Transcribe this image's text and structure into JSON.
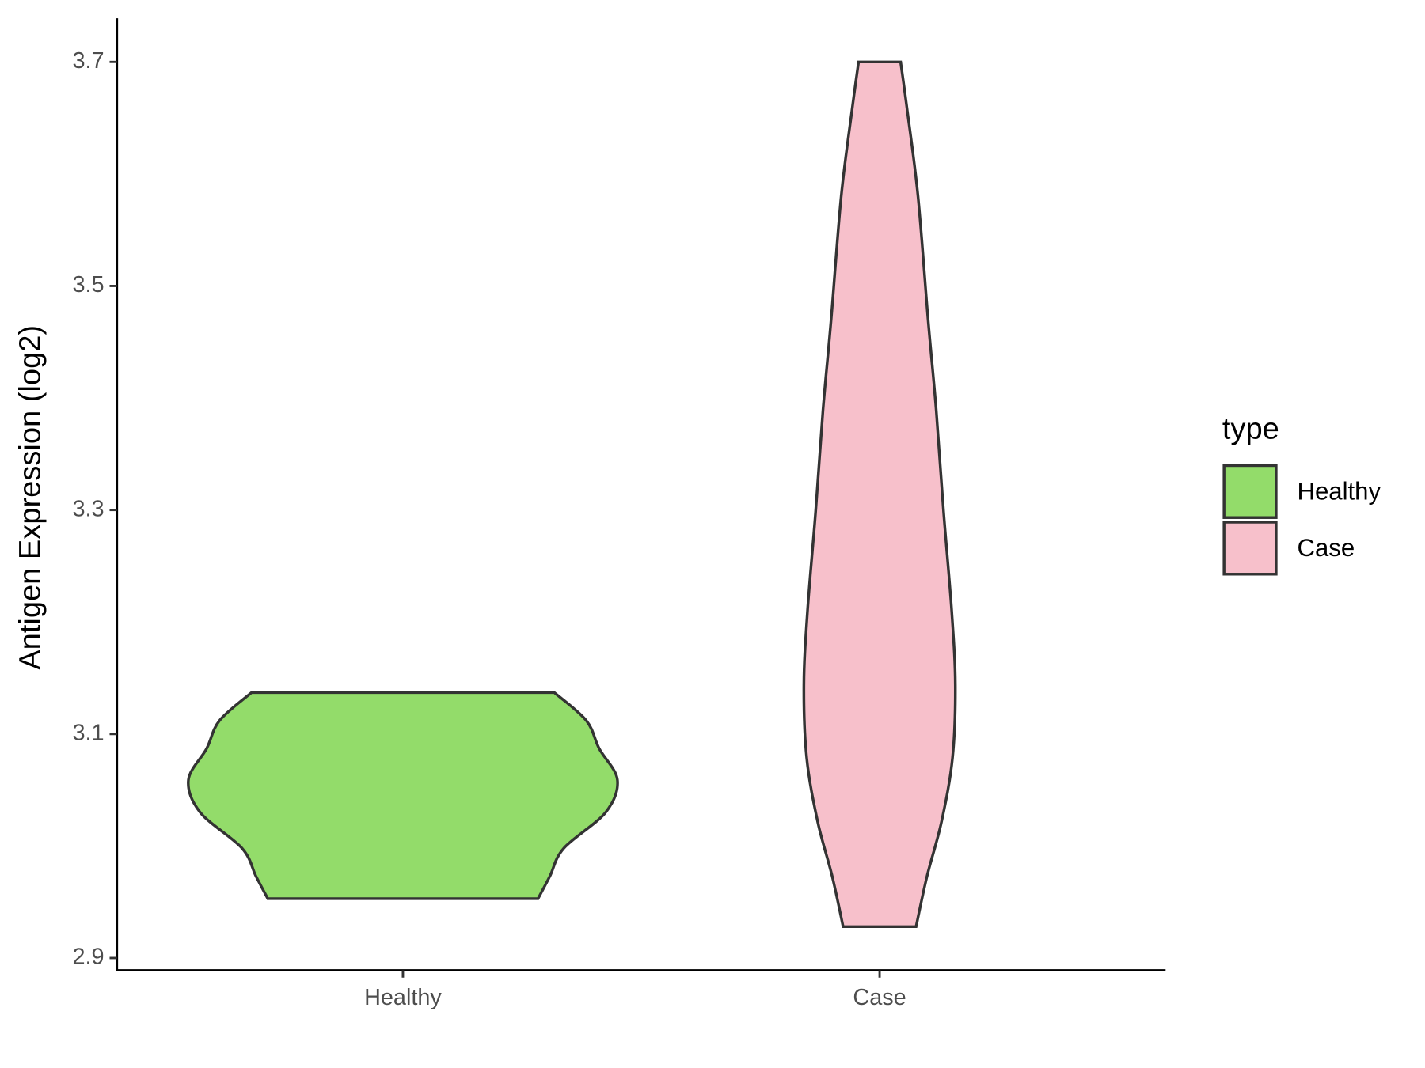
{
  "chart_data": {
    "type": "violin",
    "y_label": "Antigen Expression (log2)",
    "categories": [
      "Healthy",
      "Case"
    ],
    "series": [
      {
        "name": "Healthy",
        "color": "#93dc6a",
        "y": [
          3.137,
          3.112,
          3.087,
          3.059,
          3.03,
          2.998,
          2.973,
          2.953
        ],
        "density": [
          0.706,
          0.855,
          0.915,
          1.0,
          0.945,
          0.75,
          0.685,
          0.63
        ]
      },
      {
        "name": "Case",
        "color": "#f7c0cb",
        "y": [
          3.7,
          3.658,
          3.58,
          3.47,
          3.389,
          3.299,
          3.21,
          3.144,
          3.079,
          3.022,
          2.973,
          2.928
        ],
        "density": [
          0.098,
          0.128,
          0.179,
          0.226,
          0.264,
          0.298,
          0.336,
          0.353,
          0.34,
          0.289,
          0.221,
          0.17
        ]
      }
    ],
    "ylim": [
      2.889,
      3.739
    ],
    "yticks": [
      2.9,
      3.1,
      3.3,
      3.5,
      3.7
    ],
    "legend_title": "type",
    "legend": "right"
  }
}
